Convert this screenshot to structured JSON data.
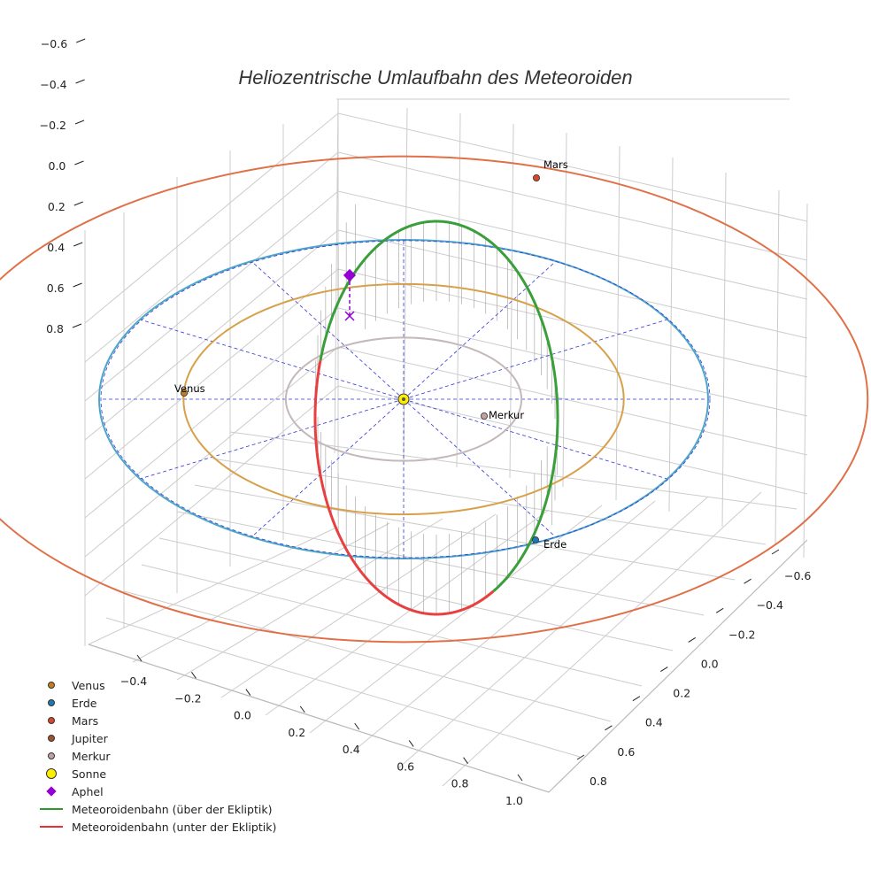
{
  "chart_data": {
    "type": "3d-orbit",
    "title": "Heliozentrische Umlaufbahn des Meteoroiden",
    "colors": {
      "venus": "#d6a14a",
      "erde": "#4da6c8",
      "erde_dot": "#1f77b4",
      "mars": "#e07048",
      "mars_dot": "#d9472b",
      "jupiter_dot": "#a0522d",
      "merkur": "#c4b8b8",
      "merkur_dot": "#c0a0a0",
      "sonne": "#ffee00",
      "aphel": "#9400d3",
      "above": "#3a9e3a",
      "below": "#e84040",
      "guide": "#3333dd",
      "drop": "#aaaaaa",
      "grid": "#cccccc"
    },
    "z_ticks": [
      "0.8",
      "0.6",
      "0.4",
      "0.2",
      "0.0",
      "−0.2",
      "−0.4",
      "−0.6"
    ],
    "z_values": [
      0.8,
      0.6,
      0.4,
      0.2,
      0.0,
      -0.2,
      -0.4,
      -0.6
    ],
    "x_ticks": [
      "−0.4",
      "−0.2",
      "0.0",
      "0.2",
      "0.4",
      "0.6",
      "0.8",
      "1.0"
    ],
    "x_values": [
      -0.4,
      -0.2,
      0.0,
      0.2,
      0.4,
      0.6,
      0.8,
      1.0
    ],
    "y_ticks": [
      "−0.6",
      "−0.4",
      "−0.2",
      "0.0",
      "0.2",
      "0.4",
      "0.6",
      "0.8"
    ],
    "y_values": [
      -0.6,
      -0.4,
      -0.2,
      0.0,
      0.2,
      0.4,
      0.6,
      0.8
    ],
    "orbits": [
      {
        "name": "Merkur",
        "radius_au": 0.387
      },
      {
        "name": "Venus",
        "radius_au": 0.723
      },
      {
        "name": "Erde",
        "radius_au": 1.0
      },
      {
        "name": "Mars",
        "radius_au": 1.524
      }
    ],
    "planet_labels": {
      "mars": "Mars",
      "venus": "Venus",
      "merkur": "Merkur",
      "erde": "Erde"
    },
    "legend": [
      {
        "label": "Venus",
        "kind": "dot",
        "color": "#c77c1e"
      },
      {
        "label": "Erde",
        "kind": "dot",
        "color": "#1f77b4"
      },
      {
        "label": "Mars",
        "kind": "dot",
        "color": "#d9472b"
      },
      {
        "label": "Jupiter",
        "kind": "dot",
        "color": "#a0522d"
      },
      {
        "label": "Merkur",
        "kind": "dot",
        "color": "#c0a0a0"
      },
      {
        "label": "Sonne",
        "kind": "bigdot",
        "color": "#ffee00"
      },
      {
        "label": "Aphel",
        "kind": "diamond",
        "color": "#9400d3"
      },
      {
        "label": "Meteoroidenbahn (über der Ekliptik)",
        "kind": "line",
        "color": "#2a9a2a"
      },
      {
        "label": "Meteoroidenbahn (unter der Ekliptik)",
        "kind": "line",
        "color": "#e83030"
      }
    ]
  }
}
